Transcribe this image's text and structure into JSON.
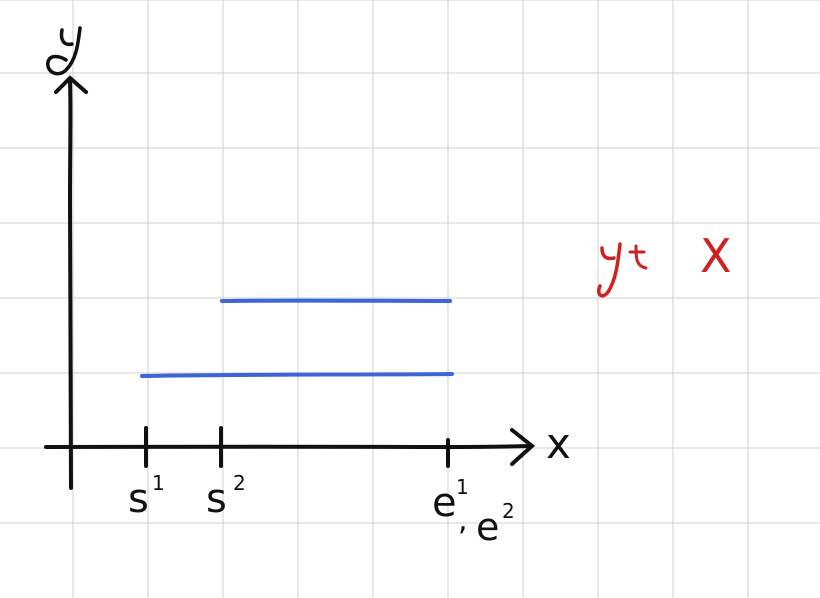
{
  "colors": {
    "grid": "#cfcfcf",
    "ink": "#111111",
    "segment": "#3f63d8",
    "annotation": "#d21f1f"
  },
  "axes": {
    "x_label": "x",
    "y_label": "y"
  },
  "ticks": {
    "s1": "s",
    "s1_sup": "1",
    "s2": "s",
    "s2_sup": "2",
    "e_first": "e",
    "e_first_sup": "1",
    "e_sep": ",",
    "e_second": "e",
    "e_second_sup": "2"
  },
  "annotation": {
    "text": "y",
    "sub_mark": "t",
    "rest": "X"
  },
  "segments": [
    {
      "name": "segment-1",
      "from": "s1",
      "to": "e1"
    },
    {
      "name": "segment-2",
      "from": "s2",
      "to": "e2"
    }
  ]
}
